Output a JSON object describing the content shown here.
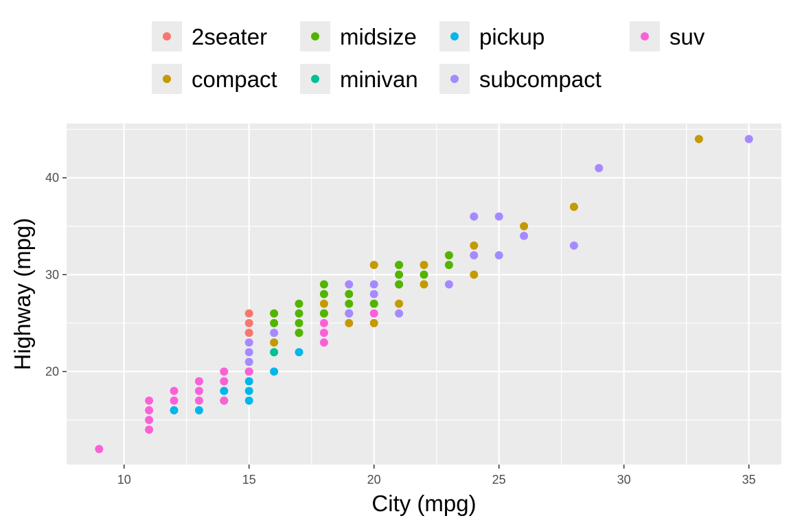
{
  "chart_data": {
    "type": "scatter",
    "xlabel": "City (mpg)",
    "ylabel": "Highway (mpg)",
    "xlim": [
      7.7,
      36.3
    ],
    "ylim": [
      10.4,
      45.6
    ],
    "x_ticks": [
      10,
      15,
      20,
      25,
      30,
      35
    ],
    "y_ticks": [
      20,
      30,
      40
    ],
    "grid": true,
    "legend_position": "top",
    "colors": {
      "2seater": "#F8766D",
      "compact": "#C49A00",
      "midsize": "#53B400",
      "minivan": "#00C094",
      "pickup": "#00B6EB",
      "subcompact": "#A58AFF",
      "suv": "#FB61D7"
    },
    "legend": [
      "2seater",
      "midsize",
      "pickup",
      "suv",
      "compact",
      "minivan",
      "subcompact"
    ],
    "series": [
      {
        "name": "2seater",
        "points": [
          [
            15,
            25
          ],
          [
            15,
            24
          ],
          [
            15,
            26
          ]
        ]
      },
      {
        "name": "compact",
        "points": [
          [
            33,
            44
          ],
          [
            28,
            37
          ],
          [
            26,
            35
          ],
          [
            24,
            33
          ],
          [
            24,
            30
          ],
          [
            22,
            31
          ],
          [
            22,
            29
          ],
          [
            21,
            31
          ],
          [
            21,
            29
          ],
          [
            21,
            27
          ],
          [
            20,
            31
          ],
          [
            20,
            27
          ],
          [
            20,
            25
          ],
          [
            19,
            25
          ],
          [
            18,
            27
          ],
          [
            18,
            26
          ],
          [
            17,
            24
          ],
          [
            16,
            23
          ]
        ]
      },
      {
        "name": "midsize",
        "points": [
          [
            23,
            32
          ],
          [
            23,
            31
          ],
          [
            22,
            30
          ],
          [
            21,
            31
          ],
          [
            21,
            30
          ],
          [
            21,
            29
          ],
          [
            20,
            27
          ],
          [
            19,
            28
          ],
          [
            19,
            27
          ],
          [
            19,
            26
          ],
          [
            18,
            29
          ],
          [
            18,
            28
          ],
          [
            18,
            26
          ],
          [
            17,
            27
          ],
          [
            17,
            26
          ],
          [
            17,
            25
          ],
          [
            17,
            24
          ],
          [
            16,
            26
          ],
          [
            16,
            25
          ]
        ]
      },
      {
        "name": "minivan",
        "points": [
          [
            16,
            22
          ]
        ]
      },
      {
        "name": "pickup",
        "points": [
          [
            17,
            22
          ],
          [
            16,
            20
          ],
          [
            15,
            20
          ],
          [
            15,
            19
          ],
          [
            15,
            18
          ],
          [
            15,
            17
          ],
          [
            14,
            18
          ],
          [
            14,
            17
          ],
          [
            13,
            16
          ],
          [
            12,
            16
          ]
        ]
      },
      {
        "name": "subcompact",
        "points": [
          [
            35,
            44
          ],
          [
            29,
            41
          ],
          [
            28,
            33
          ],
          [
            26,
            34
          ],
          [
            25,
            36
          ],
          [
            25,
            32
          ],
          [
            24,
            36
          ],
          [
            24,
            32
          ],
          [
            23,
            29
          ],
          [
            21,
            26
          ],
          [
            20,
            29
          ],
          [
            20,
            28
          ],
          [
            19,
            29
          ],
          [
            19,
            26
          ],
          [
            16,
            24
          ],
          [
            15,
            23
          ],
          [
            15,
            22
          ],
          [
            15,
            21
          ]
        ]
      },
      {
        "name": "suv",
        "points": [
          [
            20,
            26
          ],
          [
            18,
            25
          ],
          [
            18,
            24
          ],
          [
            18,
            23
          ],
          [
            15,
            20
          ],
          [
            14,
            20
          ],
          [
            14,
            19
          ],
          [
            14,
            17
          ],
          [
            13,
            19
          ],
          [
            13,
            18
          ],
          [
            13,
            17
          ],
          [
            12,
            18
          ],
          [
            12,
            17
          ],
          [
            11,
            17
          ],
          [
            11,
            16
          ],
          [
            11,
            15
          ],
          [
            11,
            14
          ],
          [
            9,
            12
          ]
        ]
      }
    ]
  }
}
